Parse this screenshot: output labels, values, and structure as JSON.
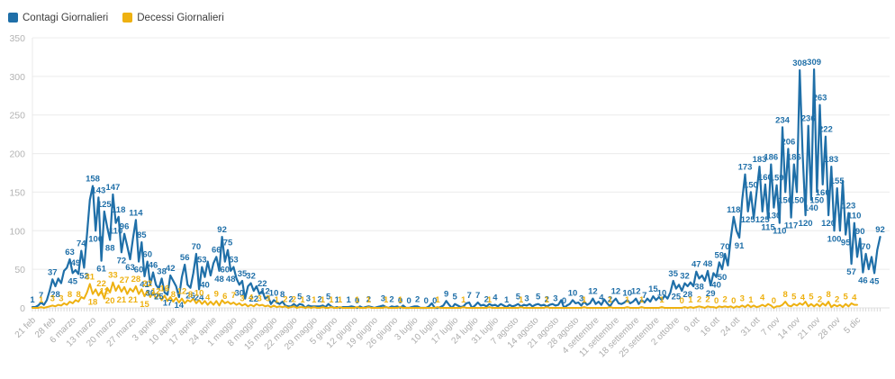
{
  "page": {
    "background": "#ffffff"
  },
  "legend": {
    "items": [
      {
        "label": "Contagi Giornalieri",
        "color": "#1f6fa8"
      },
      {
        "label": "Decessi Giornalieri",
        "color": "#eeb111"
      }
    ]
  },
  "chart_data": {
    "type": "line",
    "title": "",
    "xlabel": "",
    "ylabel": "",
    "grid": true,
    "legend_position": "top-left",
    "ylim": [
      0,
      350
    ],
    "y_ticks": [
      0,
      50,
      100,
      150,
      200,
      250,
      300,
      350
    ],
    "x_tick_interval_days": 7,
    "x_tick_labels": [
      "21 feb",
      "28 feb",
      "6 marzo",
      "13 marzo",
      "20 marzo",
      "27 marzo",
      "3 aprile",
      "10 aprile",
      "17 aprile",
      "24 aprile",
      "1 maggio",
      "8 maggio",
      "15 maggio",
      "22 maggio",
      "29 maggio",
      "5 giugno",
      "12 giugno",
      "19 giugno",
      "26 giugno",
      "3 luglio",
      "10 luglio",
      "17 luglio",
      "24 luglio",
      "31 luglio",
      "7 agosto",
      "14 agosto",
      "21 agosto",
      "28 agosto",
      "4 settembre",
      "11 settembre",
      "18 settembre",
      "25 settembre",
      "2 ottobre",
      "9 ott",
      "16 ott",
      "24 ott",
      "31 ott",
      "7 nov",
      "14 nov",
      "21 nov",
      "28 nov",
      "5 dic"
    ],
    "data_labels": true,
    "series": [
      {
        "name": "Contagi Giornalieri",
        "color": "#1f6fa8",
        "values": [
          1,
          1,
          3,
          7,
          4,
          10,
          22,
          37,
          28,
          38,
          32,
          48,
          52,
          63,
          45,
          49,
          44,
          74,
          52,
          95,
          140,
          158,
          100,
          143,
          61,
          125,
          105,
          88,
          147,
          110,
          118,
          72,
          96,
          80,
          63,
          90,
          114,
          60,
          85,
          41,
          60,
          30,
          46,
          30,
          25,
          38,
          20,
          17,
          42,
          35,
          28,
          14,
          40,
          56,
          30,
          26,
          45,
          70,
          24,
          53,
          40,
          60,
          42,
          58,
          66,
          48,
          92,
          60,
          75,
          48,
          53,
          38,
          30,
          35,
          12,
          28,
          32,
          22,
          28,
          18,
          22,
          12,
          15,
          5,
          10,
          7,
          5,
          8,
          3,
          2,
          2,
          5,
          2,
          5,
          4,
          0,
          3,
          2,
          2,
          2,
          2,
          3,
          1,
          5,
          2,
          0,
          1,
          0,
          1,
          1,
          1,
          2,
          1,
          0,
          2,
          0,
          1,
          2,
          1,
          0,
          1,
          2,
          3,
          1,
          0,
          2,
          1,
          2,
          0,
          3,
          0,
          0,
          1,
          2,
          2,
          0,
          0,
          0,
          2,
          6,
          0,
          0,
          1,
          3,
          9,
          4,
          0,
          5,
          3,
          1,
          2,
          6,
          7,
          0,
          3,
          7,
          3,
          4,
          2,
          5,
          3,
          4,
          2,
          5,
          3,
          1,
          4,
          2,
          3,
          5,
          2,
          4,
          3,
          5,
          2,
          4,
          5,
          3,
          4,
          2,
          4,
          5,
          3,
          4,
          10,
          0,
          3,
          5,
          10,
          6,
          7,
          3,
          8,
          4,
          6,
          12,
          5,
          8,
          4,
          11,
          6,
          2,
          8,
          12,
          6,
          5,
          7,
          10,
          6,
          8,
          12,
          5,
          10,
          7,
          12,
          8,
          15,
          10,
          14,
          10,
          16,
          12,
          20,
          35,
          25,
          30,
          22,
          32,
          28,
          33,
          28,
          47,
          38,
          42,
          35,
          48,
          29,
          45,
          40,
          59,
          50,
          70,
          55,
          90,
          118,
          100,
          91,
          140,
          173,
          125,
          150,
          116,
          150,
          183,
          125,
          160,
          115,
          186,
          130,
          159,
          110,
          234,
          150,
          206,
          117,
          186,
          150,
          308,
          200,
          120,
          236,
          140,
          309,
          150,
          263,
          160,
          222,
          120,
          183,
          100,
          155,
          100,
          164,
          95,
          123,
          57,
          110,
          66,
          90,
          46,
          70,
          50,
          66,
          45,
          75,
          92
        ]
      },
      {
        "name": "Decessi Giornalieri",
        "color": "#eeb111",
        "values": [
          0,
          0,
          0,
          1,
          0,
          1,
          2,
          3,
          2,
          4,
          3,
          6,
          4,
          8,
          6,
          10,
          8,
          14,
          12,
          20,
          31,
          18,
          24,
          16,
          22,
          12,
          26,
          20,
          33,
          22,
          29,
          21,
          27,
          18,
          25,
          21,
          28,
          18,
          24,
          15,
          22,
          14,
          20,
          12,
          18,
          10,
          16,
          9,
          14,
          8,
          13,
          7,
          12,
          6,
          10,
          8,
          12,
          6,
          10,
          5,
          9,
          4,
          8,
          4,
          9,
          3,
          10,
          6,
          8,
          5,
          7,
          4,
          6,
          3,
          5,
          2,
          4,
          2,
          5,
          3,
          4,
          2,
          3,
          1,
          3,
          1,
          2,
          1,
          2,
          0,
          1,
          2,
          0,
          1,
          1,
          0,
          1,
          0,
          1,
          0,
          0,
          1,
          0,
          0,
          1,
          0,
          0,
          1,
          0,
          0,
          0,
          0,
          0,
          1,
          0,
          0,
          0,
          1,
          0,
          0,
          0,
          0,
          0,
          1,
          0,
          0,
          0,
          0,
          1,
          0,
          0,
          0,
          0,
          0,
          0,
          0,
          0,
          0,
          0,
          0,
          0,
          1,
          0,
          0,
          0,
          0,
          0,
          0,
          0,
          0,
          1,
          0,
          0,
          0,
          0,
          0,
          0,
          0,
          0,
          1,
          0,
          0,
          0,
          0,
          0,
          0,
          0,
          0,
          0,
          0,
          1,
          0,
          0,
          0,
          0,
          0,
          0,
          0,
          0,
          1,
          0,
          0,
          0,
          0,
          0,
          0,
          0,
          0,
          0,
          0,
          0,
          0,
          1,
          0,
          0,
          0,
          0,
          0,
          0,
          0,
          0,
          1,
          0,
          0,
          0,
          0,
          0,
          1,
          0,
          0,
          0,
          0,
          1,
          0,
          0,
          0,
          0,
          0,
          0,
          1,
          0,
          0,
          0,
          0,
          0,
          0,
          0,
          1,
          0,
          1,
          0,
          1,
          2,
          1,
          0,
          2,
          1,
          1,
          0,
          2,
          1,
          2,
          1,
          2,
          0,
          2,
          1,
          3,
          1,
          4,
          1,
          3,
          1,
          2,
          4,
          2,
          5,
          3,
          0,
          2,
          2,
          4,
          8,
          3,
          2,
          5,
          3,
          6,
          4,
          8,
          2,
          5,
          2,
          5,
          2,
          6,
          3,
          8,
          1,
          4,
          2,
          4,
          1,
          5,
          2,
          6,
          4,
          4
        ]
      }
    ]
  }
}
